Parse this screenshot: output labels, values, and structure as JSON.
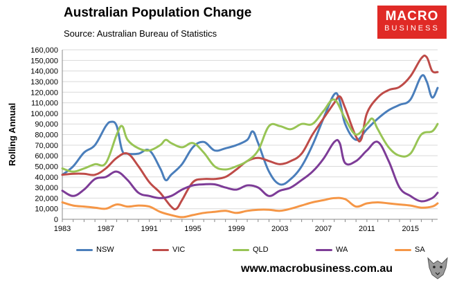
{
  "header": {
    "title": "Australian Population Change",
    "subtitle": "Source: Australian Bureau of Statistics",
    "brand_line1": "MACRO",
    "brand_line2": "BUSINESS"
  },
  "footer": {
    "website": "www.macrobusiness.com.au"
  },
  "colors": {
    "NSW": "#4a7ebb",
    "VIC": "#be4b48",
    "QLD": "#98c455",
    "WA": "#7d3c97",
    "SA": "#f59646",
    "brand": "#e02a26"
  },
  "chart_data": {
    "type": "line",
    "title": "Australian Population Change",
    "subtitle": "Source: Australian Bureau of Statistics",
    "xlabel": "",
    "ylabel": "Rolling Annual",
    "xlim": [
      1983,
      2017.5
    ],
    "ylim": [
      0,
      160000
    ],
    "x_ticks": [
      1983,
      1987,
      1991,
      1995,
      1999,
      2003,
      2007,
      2011,
      2015
    ],
    "y_ticks": [
      0,
      10000,
      20000,
      30000,
      40000,
      50000,
      60000,
      70000,
      80000,
      90000,
      100000,
      110000,
      120000,
      130000,
      140000,
      150000,
      160000
    ],
    "y_tick_labels": [
      "0",
      "10,000",
      "20,000",
      "30,000",
      "40,000",
      "50,000",
      "60,000",
      "70,000",
      "80,000",
      "90,000",
      "100,000",
      "110,000",
      "120,000",
      "130,000",
      "140,000",
      "150,000",
      "160,000"
    ],
    "grid": true,
    "legend_position": "bottom",
    "series": [
      {
        "name": "NSW",
        "x": [
          1983,
          1984,
          1985,
          1986,
          1987,
          1987.5,
          1988,
          1988.5,
          1989,
          1990,
          1991,
          1992,
          1992.5,
          1993,
          1994,
          1995,
          1996,
          1997,
          1998,
          1999,
          2000,
          2000.5,
          2001,
          2002,
          2003,
          2004,
          2005,
          2006,
          2007,
          2008,
          2008.5,
          2009,
          2010,
          2011,
          2012,
          2013,
          2014,
          2015,
          2016,
          2016.5,
          2017,
          2017.5
        ],
        "values": [
          42000,
          50000,
          63000,
          70000,
          88000,
          92000,
          88000,
          65000,
          62000,
          62000,
          65000,
          48000,
          37000,
          42000,
          52000,
          68000,
          73000,
          65000,
          67000,
          70000,
          75000,
          83000,
          72000,
          45000,
          33000,
          38000,
          50000,
          70000,
          95000,
          118000,
          112000,
          90000,
          75000,
          85000,
          95000,
          103000,
          108000,
          113000,
          135000,
          130000,
          115000,
          124000
        ]
      },
      {
        "name": "VIC",
        "x": [
          1983,
          1984,
          1985,
          1986,
          1987,
          1988,
          1989,
          1990,
          1991,
          1992,
          1993,
          1993.5,
          1994,
          1995,
          1996,
          1997,
          1998,
          1999,
          2000,
          2001,
          2002,
          2003,
          2004,
          2005,
          2006,
          2007,
          2008,
          2008.5,
          2009,
          2010,
          2010.5,
          2011,
          2012,
          2013,
          2014,
          2015,
          2016,
          2016.5,
          2017,
          2017.5
        ],
        "values": [
          42000,
          43000,
          43000,
          42000,
          48000,
          58000,
          62000,
          50000,
          35000,
          25000,
          12000,
          10000,
          18000,
          35000,
          38000,
          38000,
          40000,
          47000,
          55000,
          58000,
          55000,
          52000,
          55000,
          62000,
          80000,
          95000,
          110000,
          116000,
          105000,
          78000,
          76000,
          100000,
          115000,
          122000,
          125000,
          135000,
          152000,
          153000,
          140000,
          139000
        ]
      },
      {
        "name": "QLD",
        "x": [
          1983,
          1984,
          1985,
          1986,
          1987,
          1988,
          1988.5,
          1989,
          1990,
          1991,
          1992,
          1992.5,
          1993,
          1994,
          1995,
          1996,
          1997,
          1998,
          1999,
          2000,
          2001,
          2002,
          2003,
          2004,
          2005,
          2006,
          2007,
          2008,
          2009,
          2010,
          2011,
          2011.5,
          2012,
          2013,
          2014,
          2015,
          2016,
          2017,
          2017.5
        ],
        "values": [
          48000,
          45000,
          48000,
          52000,
          53000,
          80000,
          88000,
          75000,
          67000,
          65000,
          70000,
          75000,
          72000,
          68000,
          72000,
          63000,
          50000,
          47000,
          50000,
          55000,
          65000,
          88000,
          88000,
          85000,
          90000,
          90000,
          102000,
          113000,
          95000,
          80000,
          90000,
          95000,
          85000,
          68000,
          60000,
          62000,
          80000,
          83000,
          90000
        ]
      },
      {
        "name": "WA",
        "x": [
          1983,
          1984,
          1985,
          1986,
          1987,
          1988,
          1989,
          1990,
          1991,
          1992,
          1993,
          1994,
          1995,
          1996,
          1997,
          1998,
          1999,
          2000,
          2001,
          2002,
          2003,
          2004,
          2005,
          2006,
          2007,
          2008,
          2008.5,
          2009,
          2010,
          2011,
          2012,
          2013,
          2014,
          2015,
          2016,
          2017,
          2017.5
        ],
        "values": [
          27000,
          22000,
          28000,
          38000,
          40000,
          45000,
          37000,
          25000,
          22000,
          20000,
          22000,
          28000,
          32000,
          33000,
          33000,
          30000,
          28000,
          32000,
          30000,
          22000,
          27000,
          30000,
          37000,
          45000,
          57000,
          73000,
          72000,
          53000,
          55000,
          65000,
          73000,
          55000,
          30000,
          22000,
          17000,
          20000,
          25000
        ]
      },
      {
        "name": "SA",
        "x": [
          1983,
          1984,
          1985,
          1986,
          1987,
          1988,
          1989,
          1990,
          1991,
          1992,
          1993,
          1994,
          1995,
          1996,
          1997,
          1998,
          1999,
          2000,
          2001,
          2002,
          2003,
          2004,
          2005,
          2006,
          2007,
          2008,
          2009,
          2010,
          2011,
          2012,
          2013,
          2014,
          2015,
          2016,
          2017,
          2017.5
        ],
        "values": [
          16000,
          13000,
          12000,
          11000,
          10000,
          14000,
          12000,
          13000,
          12000,
          7000,
          4000,
          2000,
          4000,
          6000,
          7000,
          8000,
          6000,
          8000,
          9000,
          9000,
          8000,
          10000,
          13000,
          16000,
          18000,
          20000,
          19000,
          12000,
          15000,
          16000,
          15000,
          14000,
          13000,
          11000,
          12000,
          15000
        ]
      }
    ]
  }
}
